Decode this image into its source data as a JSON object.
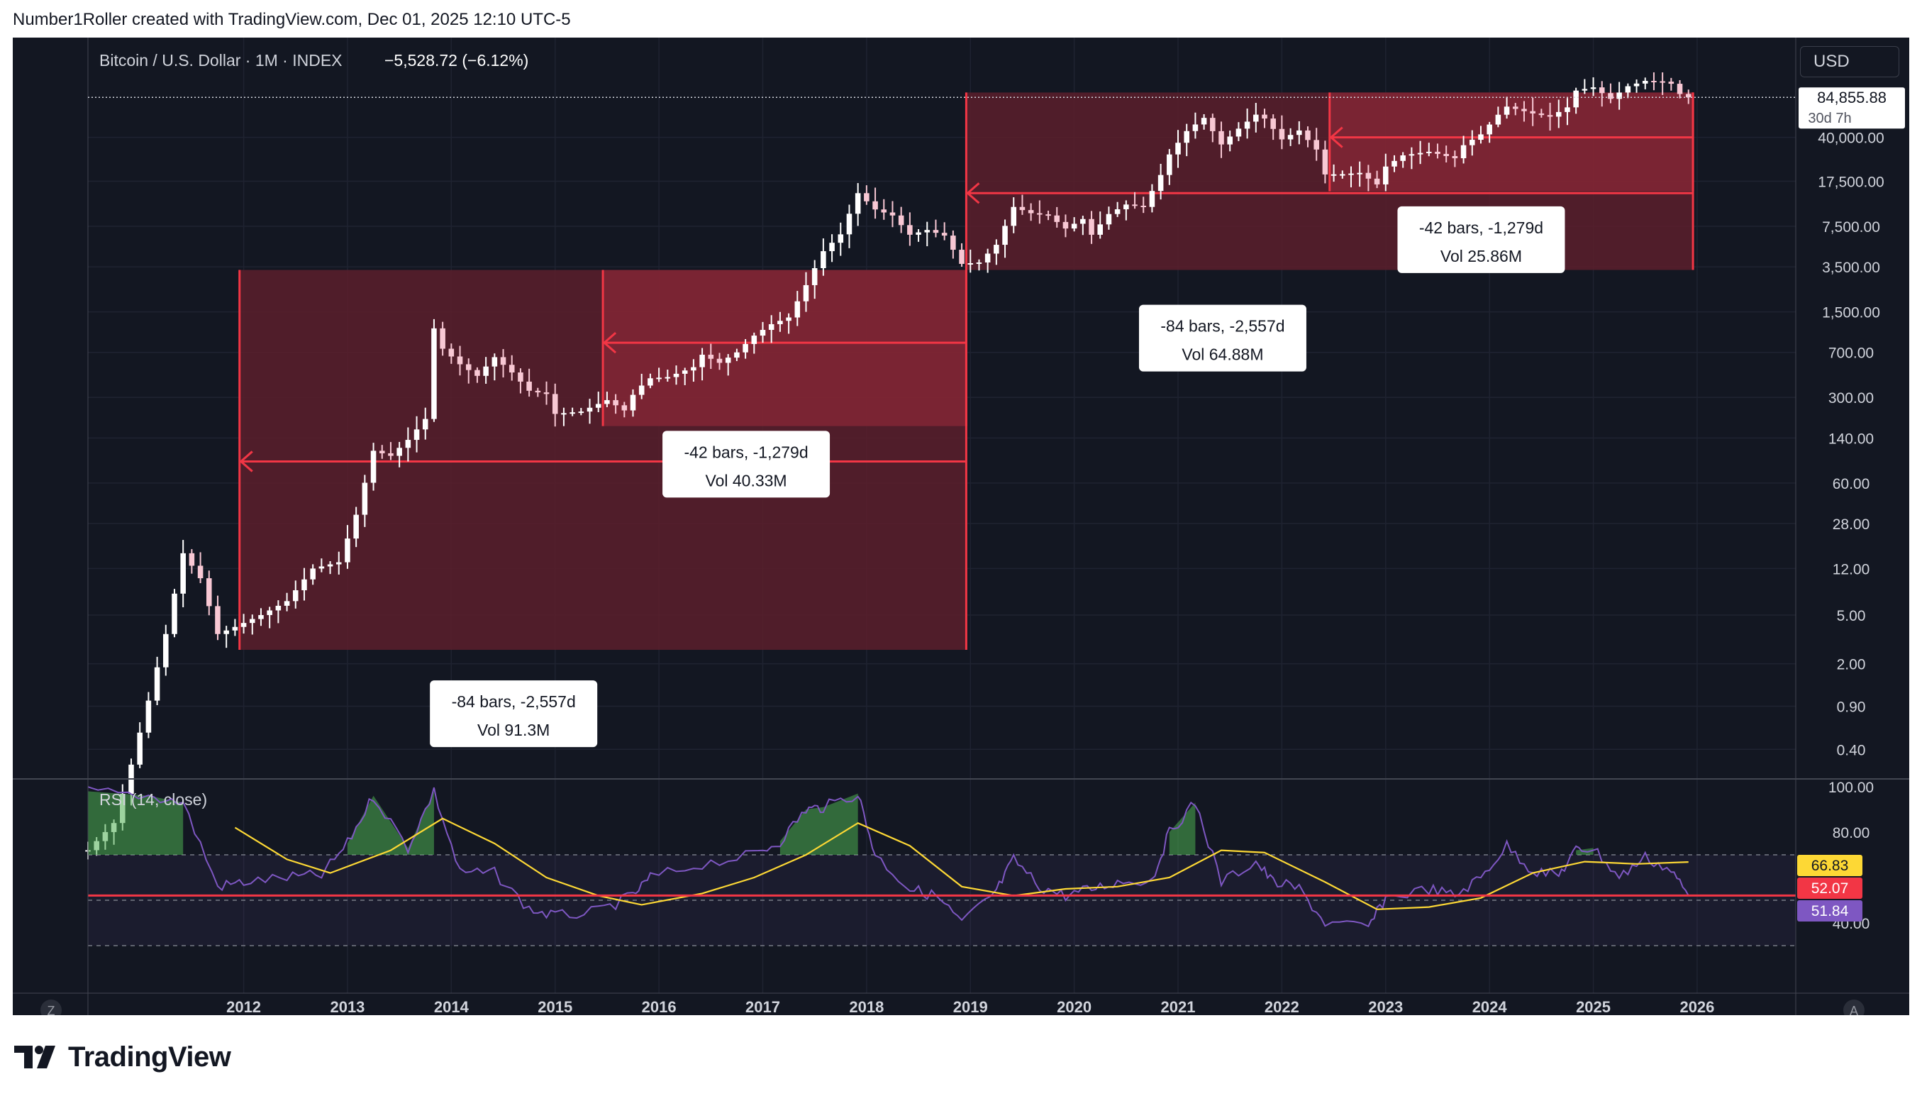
{
  "header": {
    "text": "Number1Roller created with TradingView.com, Dec 01, 2025 12:10 UTC-5"
  },
  "legend": {
    "symbol": "Bitcoin / U.S. Dollar · 1M · INDEX",
    "change": "−5,528.72 (−6.12%)"
  },
  "currency_button": "USD",
  "price": {
    "last": "84,855.88",
    "countdown": "30d 7h"
  },
  "rsi": {
    "title": "RSI (14, close)",
    "badges": [
      "66.83",
      "52.07",
      "51.84"
    ]
  },
  "corner": {
    "left": "Z",
    "right": "A"
  },
  "brand": "TradingView",
  "colors": {
    "background": "#131722",
    "candle_up": "#ffffff",
    "candle_down": "#f8bbd0",
    "zone": "#f23645",
    "rsi_line": "#7e57c2",
    "rsi_ma": "#fdd835"
  },
  "annotations": [
    {
      "id": "zone-1-outer",
      "text1": "-84 bars, -2,557d",
      "text2": "Vol 91.3M"
    },
    {
      "id": "zone-1-inner",
      "text1": "-42 bars, -1,279d",
      "text2": "Vol 40.33M"
    },
    {
      "id": "zone-2-outer",
      "text1": "-84 bars, -2,557d",
      "text2": "Vol 64.88M"
    },
    {
      "id": "zone-2-inner",
      "text1": "-42 bars, -1,279d",
      "text2": "Vol 25.86M"
    }
  ],
  "chart_data": {
    "type": "line",
    "title": "Bitcoin / U.S. Dollar · 1M · INDEX",
    "y_scale": "log",
    "y_ticks": [
      "40,000.00",
      "17,500.00",
      "7,500.00",
      "3,500.00",
      "1,500.00",
      "700.00",
      "300.00",
      "140.00",
      "60.00",
      "28.00",
      "12.00",
      "5.00",
      "2.00",
      "0.90",
      "0.40"
    ],
    "x_ticks": [
      "2012",
      "2013",
      "2014",
      "2015",
      "2016",
      "2017",
      "2018",
      "2019",
      "2020",
      "2021",
      "2022",
      "2023",
      "2024",
      "2025",
      "2026"
    ],
    "series": [
      {
        "name": "",
        "points": [
          [
            "2010-07",
            0.06
          ],
          [
            "2010-10",
            0.1
          ],
          [
            "2010-12",
            0.3
          ],
          [
            "2011-02",
            1
          ],
          [
            "2011-04",
            3.5
          ],
          [
            "2011-06",
            16
          ],
          [
            "2011-08",
            10
          ],
          [
            "2011-10",
            3.5
          ],
          [
            "2011-12",
            4
          ],
          [
            "2012-03",
            5
          ],
          [
            "2012-06",
            6.5
          ],
          [
            "2012-09",
            12
          ],
          [
            "2012-12",
            13.5
          ],
          [
            "2013-02",
            33
          ],
          [
            "2013-04",
            110
          ],
          [
            "2013-06",
            100
          ],
          [
            "2013-08",
            135
          ],
          [
            "2013-10",
            200
          ],
          [
            "2013-11",
            1100
          ],
          [
            "2013-12",
            750
          ],
          [
            "2014-02",
            560
          ],
          [
            "2014-04",
            450
          ],
          [
            "2014-06",
            640
          ],
          [
            "2014-08",
            480
          ],
          [
            "2014-10",
            340
          ],
          [
            "2014-12",
            320
          ],
          [
            "2015-01",
            220
          ],
          [
            "2015-04",
            230
          ],
          [
            "2015-07",
            285
          ],
          [
            "2015-09",
            235
          ],
          [
            "2015-10",
            315
          ],
          [
            "2015-11",
            375
          ],
          [
            "2015-12",
            430
          ],
          [
            "2016-02",
            440
          ],
          [
            "2016-05",
            530
          ],
          [
            "2016-06",
            670
          ],
          [
            "2016-08",
            575
          ],
          [
            "2016-10",
            700
          ],
          [
            "2016-12",
            960
          ],
          [
            "2017-02",
            1190
          ],
          [
            "2017-04",
            1350
          ],
          [
            "2017-06",
            2480
          ],
          [
            "2017-08",
            4700
          ],
          [
            "2017-10",
            6450
          ],
          [
            "2017-12",
            14000
          ],
          [
            "2018-02",
            10300
          ],
          [
            "2018-04",
            9200
          ],
          [
            "2018-06",
            6400
          ],
          [
            "2018-08",
            7000
          ],
          [
            "2018-10",
            6300
          ],
          [
            "2018-12",
            3700
          ],
          [
            "2019-02",
            3800
          ],
          [
            "2019-04",
            5300
          ],
          [
            "2019-06",
            10800
          ],
          [
            "2019-08",
            9600
          ],
          [
            "2019-10",
            9200
          ],
          [
            "2019-12",
            7200
          ],
          [
            "2020-02",
            8600
          ],
          [
            "2020-03",
            6400
          ],
          [
            "2020-05",
            9450
          ],
          [
            "2020-07",
            11300
          ],
          [
            "2020-09",
            10800
          ],
          [
            "2020-11",
            19700
          ],
          [
            "2020-12",
            29000
          ],
          [
            "2021-02",
            45000
          ],
          [
            "2021-04",
            57700
          ],
          [
            "2021-06",
            35000
          ],
          [
            "2021-08",
            47100
          ],
          [
            "2021-10",
            61300
          ],
          [
            "2021-11",
            57000
          ],
          [
            "2022-01",
            38500
          ],
          [
            "2022-03",
            45500
          ],
          [
            "2022-05",
            31800
          ],
          [
            "2022-06",
            19900
          ],
          [
            "2022-08",
            20000
          ],
          [
            "2022-10",
            20500
          ],
          [
            "2022-12",
            16500
          ],
          [
            "2023-01",
            23100
          ],
          [
            "2023-03",
            28500
          ],
          [
            "2023-06",
            30500
          ],
          [
            "2023-09",
            27000
          ],
          [
            "2023-10",
            34500
          ],
          [
            "2023-12",
            42300
          ],
          [
            "2024-02",
            61200
          ],
          [
            "2024-03",
            71300
          ],
          [
            "2024-06",
            62700
          ],
          [
            "2024-08",
            59000
          ],
          [
            "2024-10",
            70300
          ],
          [
            "2024-11",
            96400
          ],
          [
            "2025-01",
            102400
          ],
          [
            "2025-03",
            82500
          ],
          [
            "2025-05",
            104600
          ],
          [
            "2025-07",
            115700
          ],
          [
            "2025-09",
            114000
          ],
          [
            "2025-10",
            109600
          ],
          [
            "2025-11",
            90400
          ],
          [
            "2025-12",
            84855.88
          ]
        ]
      },
      {
        "name": "RSI",
        "points": [
          [
            "2010-07",
            98
          ],
          [
            "2011-02",
            96
          ],
          [
            "2011-06",
            93
          ],
          [
            "2011-10",
            56
          ],
          [
            "2012-01",
            58
          ],
          [
            "2012-06",
            60
          ],
          [
            "2012-10",
            61
          ],
          [
            "2013-01",
            75
          ],
          [
            "2013-04",
            96
          ],
          [
            "2013-08",
            73
          ],
          [
            "2013-11",
            98
          ],
          [
            "2014-02",
            62
          ],
          [
            "2014-06",
            62
          ],
          [
            "2014-10",
            46
          ],
          [
            "2015-01",
            43
          ],
          [
            "2015-06",
            45
          ],
          [
            "2015-10",
            52
          ],
          [
            "2015-12",
            60
          ],
          [
            "2016-06",
            66
          ],
          [
            "2016-12",
            70
          ],
          [
            "2017-03",
            76
          ],
          [
            "2017-06",
            90
          ],
          [
            "2017-08",
            91
          ],
          [
            "2017-12",
            97
          ],
          [
            "2018-02",
            70
          ],
          [
            "2018-06",
            55
          ],
          [
            "2018-09",
            52
          ],
          [
            "2018-12",
            40
          ],
          [
            "2019-04",
            54
          ],
          [
            "2019-06",
            68
          ],
          [
            "2019-09",
            56
          ],
          [
            "2019-12",
            52
          ],
          [
            "2020-03",
            55
          ],
          [
            "2020-06",
            58
          ],
          [
            "2020-10",
            59
          ],
          [
            "2020-12",
            80
          ],
          [
            "2021-03",
            93
          ],
          [
            "2021-06",
            58
          ],
          [
            "2021-10",
            67
          ],
          [
            "2021-12",
            58
          ],
          [
            "2022-03",
            55
          ],
          [
            "2022-06",
            40
          ],
          [
            "2022-11",
            38
          ],
          [
            "2023-01",
            51
          ],
          [
            "2023-06",
            55
          ],
          [
            "2023-09",
            52
          ],
          [
            "2023-12",
            60
          ],
          [
            "2024-03",
            74
          ],
          [
            "2024-06",
            63
          ],
          [
            "2024-09",
            61
          ],
          [
            "2024-11",
            72
          ],
          [
            "2025-01",
            73
          ],
          [
            "2025-04",
            60
          ],
          [
            "2025-07",
            69
          ],
          [
            "2025-10",
            63
          ],
          [
            "2025-12",
            52.07
          ]
        ]
      },
      {
        "name": "RSI-based MA",
        "points": [
          [
            "2011-12",
            82
          ],
          [
            "2012-06",
            68
          ],
          [
            "2012-11",
            62
          ],
          [
            "2013-06",
            72
          ],
          [
            "2013-12",
            86
          ],
          [
            "2014-06",
            75
          ],
          [
            "2014-12",
            60
          ],
          [
            "2015-06",
            52
          ],
          [
            "2015-11",
            48
          ],
          [
            "2016-06",
            53
          ],
          [
            "2016-12",
            60
          ],
          [
            "2017-06",
            70
          ],
          [
            "2017-12",
            84
          ],
          [
            "2018-06",
            74
          ],
          [
            "2018-12",
            56
          ],
          [
            "2019-06",
            52
          ],
          [
            "2019-12",
            55
          ],
          [
            "2020-06",
            56
          ],
          [
            "2020-12",
            60
          ],
          [
            "2021-06",
            72
          ],
          [
            "2021-11",
            71
          ],
          [
            "2022-06",
            58
          ],
          [
            "2022-12",
            46
          ],
          [
            "2023-06",
            47
          ],
          [
            "2023-12",
            51
          ],
          [
            "2024-06",
            62
          ],
          [
            "2024-12",
            67
          ],
          [
            "2025-06",
            66
          ],
          [
            "2025-12",
            66.83
          ]
        ]
      }
    ],
    "rsi_levels": [
      70,
      50,
      30
    ],
    "rsi_ticks": [
      "100.00",
      "80.00",
      "40.00"
    ],
    "xlabel": "",
    "ylabel": ""
  }
}
